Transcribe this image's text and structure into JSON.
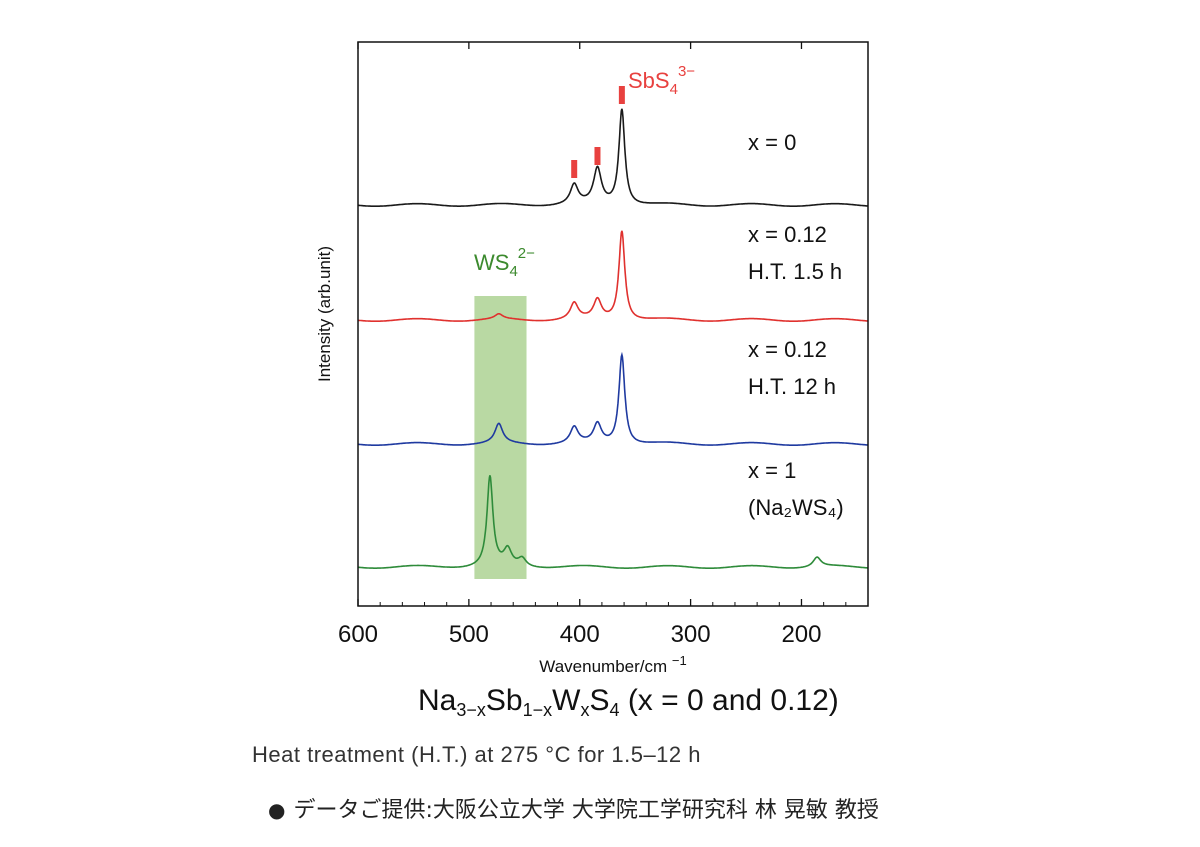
{
  "figure": {
    "compound_title": {
      "parts": [
        {
          "t": "Na"
        },
        {
          "s": "3−x"
        },
        {
          "t": "Sb"
        },
        {
          "s": "1−x"
        },
        {
          "t": "W"
        },
        {
          "s": "x"
        },
        {
          "t": "S"
        },
        {
          "s": "4"
        },
        {
          "t": " (x = 0 and 0.12)"
        }
      ]
    },
    "caption": "Heat treatment (H.T.) at 275 °C for 1.5–12 h",
    "credit_bullet": "●",
    "credit": "データご提供:大阪公立大学 大学院工学研究科 林 晃敏 教授"
  },
  "chart_data": {
    "type": "line",
    "xlabel": "Wavenumber/cm",
    "xlabel_superscript": "−1",
    "ylabel": "Intensity (arb.unit)",
    "xlim": [
      600,
      140
    ],
    "xticks": [
      600,
      500,
      400,
      300,
      200
    ],
    "x_reversed": true,
    "y_ticks_shown": false,
    "grid": false,
    "highlight_band": {
      "from": 495,
      "to": 448,
      "color": "#b9d9a3",
      "label": "WS",
      "label_sub": "4",
      "label_sup": "2−",
      "label_color": "#3c8a2e"
    },
    "peak_markers": {
      "color": "#e8413f",
      "positions": [
        405,
        384,
        362
      ],
      "label": "SbS",
      "label_sub": "4",
      "label_sup": "3−"
    },
    "series": [
      {
        "label_lines": [
          "x = 0"
        ],
        "color": "#1a1a1a",
        "peaks": [
          [
            405,
            0.12
          ],
          [
            384,
            0.22
          ],
          [
            362,
            0.6
          ]
        ]
      },
      {
        "label_lines": [
          "x = 0.12",
          "H.T. 1.5 h"
        ],
        "color": "#e0312e",
        "peaks": [
          [
            473,
            0.03
          ],
          [
            405,
            0.1
          ],
          [
            384,
            0.12
          ],
          [
            362,
            0.56
          ]
        ]
      },
      {
        "label_lines": [
          "x = 0.12",
          "H.T. 12 h"
        ],
        "color": "#1f3aa0",
        "peaks": [
          [
            473,
            0.12
          ],
          [
            405,
            0.1
          ],
          [
            384,
            0.12
          ],
          [
            362,
            0.56
          ]
        ]
      },
      {
        "label_lines": [
          "x = 1",
          "(Na₂WS₄)"
        ],
        "color": "#2e8b3a",
        "peaks": [
          [
            481,
            0.56
          ],
          [
            465,
            0.1
          ],
          [
            452,
            0.05
          ],
          [
            186,
            0.06
          ]
        ]
      }
    ]
  }
}
